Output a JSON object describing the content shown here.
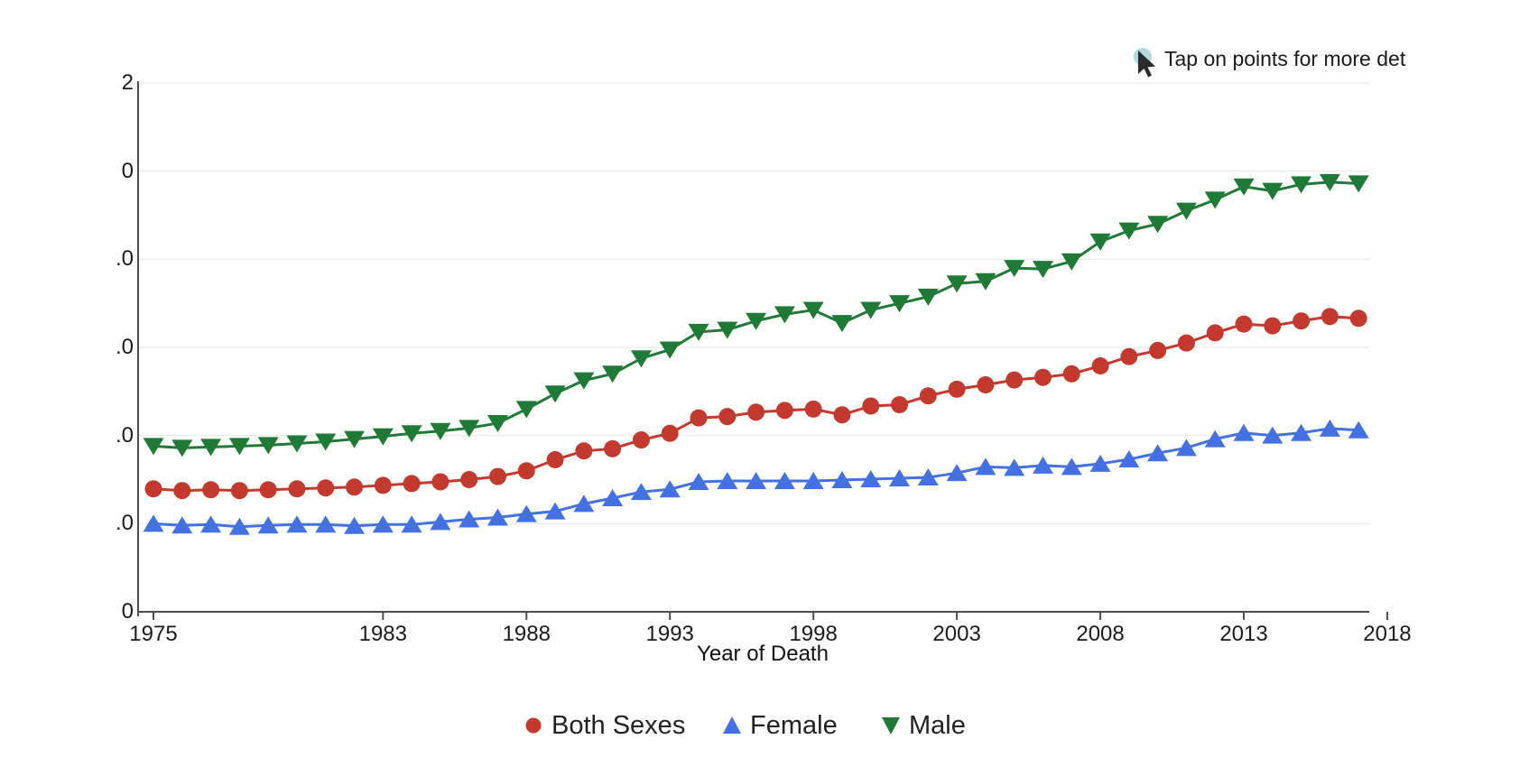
{
  "note": {
    "text": "Tap on points for more det",
    "icon": "cursor-icon",
    "icon_circle_color": "#b3d8e0",
    "icon_arrow_color": "#2b2b2b"
  },
  "x_axis": {
    "title": "Year of Death",
    "tick_years": [
      1975,
      1983,
      1988,
      1993,
      1998,
      2003,
      2008,
      2013,
      2018
    ],
    "tick_labels": [
      "1975",
      "1983",
      "1988",
      "1993",
      "1998",
      "2003",
      "2008",
      "2013",
      "2018"
    ]
  },
  "y_axis": {
    "visible_label_fragments": [
      {
        "text": "2",
        "value": 12
      },
      {
        "text": "0",
        "value": 10
      },
      {
        "text": ".0",
        "value": 8
      },
      {
        "text": ".0",
        "value": 6
      },
      {
        "text": ".0",
        "value": 4
      },
      {
        "text": ".0",
        "value": 2
      },
      {
        "text": "0",
        "value": 0
      }
    ]
  },
  "legend": [
    {
      "label": "Both Sexes",
      "marker": "circle",
      "color": "#c4392e"
    },
    {
      "label": "Female",
      "marker": "triangle-up",
      "color": "#4371e1"
    },
    {
      "label": "Male",
      "marker": "triangle-down",
      "color": "#1f7a36"
    }
  ],
  "colors": {
    "axis": "#4d4d4d",
    "grid": "#ececec",
    "red": "#c4392e",
    "blue": "#4371e1",
    "green": "#1f7a36"
  },
  "chart_data": {
    "type": "line",
    "title": "",
    "xlabel": "Year of Death",
    "ylabel": "",
    "ylim": [
      0,
      12
    ],
    "grid": true,
    "legend_position": "bottom",
    "x": [
      1975,
      1976,
      1977,
      1978,
      1979,
      1980,
      1981,
      1982,
      1983,
      1984,
      1985,
      1986,
      1987,
      1988,
      1989,
      1990,
      1991,
      1992,
      1993,
      1994,
      1995,
      1996,
      1997,
      1998,
      1999,
      2000,
      2001,
      2002,
      2003,
      2004,
      2005,
      2006,
      2007,
      2008,
      2009,
      2010,
      2011,
      2012,
      2013,
      2014,
      2015,
      2016,
      2017
    ],
    "series": [
      {
        "name": "Both Sexes",
        "marker": "circle",
        "color": "#c4392e",
        "values": [
          2.79,
          2.75,
          2.77,
          2.75,
          2.77,
          2.79,
          2.81,
          2.83,
          2.87,
          2.91,
          2.95,
          3.0,
          3.07,
          3.2,
          3.45,
          3.65,
          3.7,
          3.9,
          4.05,
          4.4,
          4.43,
          4.53,
          4.57,
          4.6,
          4.47,
          4.67,
          4.7,
          4.9,
          5.05,
          5.15,
          5.26,
          5.32,
          5.4,
          5.58,
          5.79,
          5.93,
          6.1,
          6.33,
          6.53,
          6.49,
          6.6,
          6.7,
          6.66
        ]
      },
      {
        "name": "Female",
        "marker": "triangle-up",
        "color": "#4371e1",
        "values": [
          2.0,
          1.96,
          1.98,
          1.93,
          1.96,
          1.98,
          1.98,
          1.95,
          1.98,
          1.98,
          2.04,
          2.1,
          2.14,
          2.22,
          2.28,
          2.45,
          2.58,
          2.72,
          2.78,
          2.95,
          2.97,
          2.97,
          2.97,
          2.97,
          2.99,
          3.01,
          3.03,
          3.05,
          3.15,
          3.29,
          3.27,
          3.32,
          3.29,
          3.36,
          3.46,
          3.6,
          3.72,
          3.92,
          4.06,
          4.0,
          4.06,
          4.16,
          4.12
        ]
      },
      {
        "name": "Male",
        "marker": "triangle-down",
        "color": "#1f7a36",
        "values": [
          3.76,
          3.72,
          3.74,
          3.76,
          3.78,
          3.82,
          3.86,
          3.92,
          3.98,
          4.05,
          4.1,
          4.17,
          4.28,
          4.6,
          4.95,
          5.25,
          5.4,
          5.75,
          5.95,
          6.35,
          6.4,
          6.6,
          6.75,
          6.85,
          6.55,
          6.85,
          7.0,
          7.15,
          7.45,
          7.5,
          7.8,
          7.78,
          7.95,
          8.4,
          8.65,
          8.8,
          9.1,
          9.35,
          9.65,
          9.55,
          9.7,
          9.75,
          9.72
        ]
      }
    ]
  }
}
